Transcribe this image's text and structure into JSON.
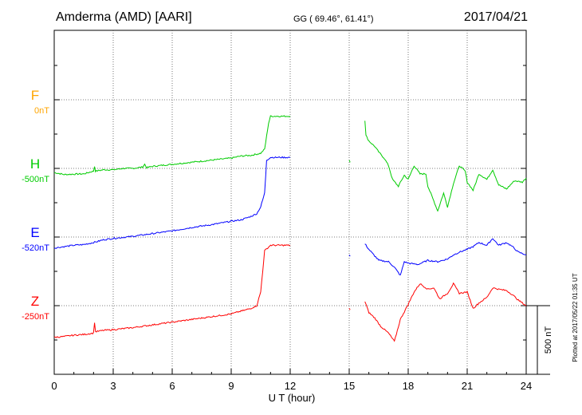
{
  "header": {
    "station": "Amderma (AMD)  [AARI]",
    "coords": "GG ( 69.46°,  61.41°)",
    "date": "2017/04/21"
  },
  "footer": {
    "xlabel": "U T (hour)",
    "scale_label": "500 nT",
    "plotted": "Plotted at 2017/05/22 01:35 UT"
  },
  "components": [
    {
      "name": "F",
      "offset": "0nT",
      "color": "#ffa500"
    },
    {
      "name": "H",
      "offset": "-500nT",
      "color": "#00cc00"
    },
    {
      "name": "E",
      "offset": "-520nT",
      "color": "#0000ff"
    },
    {
      "name": "Z",
      "offset": "-250nT",
      "color": "#ff0000"
    }
  ],
  "chart_data": {
    "type": "line",
    "title": "Amderma (AMD)  [AARI]",
    "xlabel": "U T (hour)",
    "ylabel": "",
    "xlim": [
      0,
      24
    ],
    "x_ticks": [
      "0",
      "3",
      "6",
      "9",
      "12",
      "15",
      "18",
      "21",
      "24"
    ],
    "y_unit_scale": "500 nT",
    "grid": true,
    "series": [
      {
        "name": "H",
        "color": "#00cc00",
        "segments": [
          [
            [
              0,
              -30
            ],
            [
              0.5,
              -45
            ],
            [
              1,
              -42
            ],
            [
              1.5,
              -40
            ],
            [
              2,
              -20
            ],
            [
              2.05,
              15
            ],
            [
              2.1,
              -20
            ],
            [
              2.5,
              -10
            ],
            [
              3,
              -10
            ],
            [
              3.5,
              0
            ],
            [
              4,
              0
            ],
            [
              4.5,
              10
            ],
            [
              4.6,
              30
            ],
            [
              4.7,
              5
            ],
            [
              5,
              15
            ],
            [
              6,
              30
            ],
            [
              7,
              45
            ],
            [
              8,
              60
            ],
            [
              9,
              75
            ],
            [
              9.5,
              90
            ],
            [
              10,
              95
            ],
            [
              10.5,
              110
            ],
            [
              10.7,
              140
            ],
            [
              10.9,
              330
            ],
            [
              11,
              380
            ],
            [
              12,
              380
            ]
          ],
          [
            [
              15,
              60
            ],
            [
              15.05,
              45
            ]
          ],
          [
            [
              15.8,
              350
            ],
            [
              15.85,
              240
            ],
            [
              16,
              200
            ],
            [
              16.3,
              160
            ],
            [
              16.5,
              120
            ],
            [
              16.8,
              70
            ],
            [
              17,
              20
            ],
            [
              17.2,
              -80
            ],
            [
              17.5,
              -130
            ],
            [
              17.8,
              -50
            ],
            [
              18,
              -80
            ],
            [
              18.3,
              20
            ],
            [
              18.6,
              -40
            ],
            [
              18.9,
              -40
            ],
            [
              19,
              -130
            ],
            [
              19.2,
              -200
            ],
            [
              19.5,
              -310
            ],
            [
              19.8,
              -180
            ],
            [
              20,
              -280
            ],
            [
              20.3,
              -110
            ],
            [
              20.6,
              20
            ],
            [
              20.9,
              -20
            ],
            [
              21,
              -100
            ],
            [
              21.3,
              -160
            ],
            [
              21.6,
              -40
            ],
            [
              22,
              -80
            ],
            [
              22.3,
              -10
            ],
            [
              22.6,
              -120
            ],
            [
              23,
              -150
            ],
            [
              23.4,
              -90
            ],
            [
              23.8,
              -100
            ],
            [
              24,
              -70
            ]
          ]
        ]
      },
      {
        "name": "E",
        "color": "#0000ff",
        "segments": [
          [
            [
              0,
              -80
            ],
            [
              0.5,
              -70
            ],
            [
              1,
              -60
            ],
            [
              1.5,
              -55
            ],
            [
              2,
              -40
            ],
            [
              2.5,
              -20
            ],
            [
              3,
              -10
            ],
            [
              4,
              5
            ],
            [
              5,
              25
            ],
            [
              6,
              45
            ],
            [
              7,
              70
            ],
            [
              8,
              90
            ],
            [
              9,
              115
            ],
            [
              9.5,
              125
            ],
            [
              10,
              150
            ],
            [
              10.3,
              170
            ],
            [
              10.5,
              220
            ],
            [
              10.7,
              320
            ],
            [
              10.8,
              560
            ],
            [
              11,
              580
            ],
            [
              12,
              580
            ]
          ],
          [
            [
              15,
              -130
            ],
            [
              15.05,
              -140
            ]
          ],
          [
            [
              15.8,
              -50
            ],
            [
              16,
              -90
            ],
            [
              16.5,
              -170
            ],
            [
              17,
              -180
            ],
            [
              17.3,
              -220
            ],
            [
              17.6,
              -280
            ],
            [
              17.8,
              -180
            ],
            [
              18,
              -190
            ],
            [
              18.5,
              -200
            ],
            [
              19,
              -170
            ],
            [
              19.5,
              -180
            ],
            [
              20,
              -160
            ],
            [
              20.3,
              -130
            ],
            [
              20.6,
              -110
            ],
            [
              21,
              -90
            ],
            [
              21.3,
              -70
            ],
            [
              21.6,
              -40
            ],
            [
              22,
              -60
            ],
            [
              22.3,
              -10
            ],
            [
              22.6,
              -60
            ],
            [
              23,
              -40
            ],
            [
              23.3,
              -70
            ],
            [
              23.6,
              -110
            ],
            [
              24,
              -130
            ]
          ]
        ]
      },
      {
        "name": "Z",
        "color": "#ff0000",
        "segments": [
          [
            [
              0,
              -230
            ],
            [
              0.5,
              -225
            ],
            [
              1,
              -215
            ],
            [
              1.5,
              -210
            ],
            [
              2,
              -200
            ],
            [
              2.05,
              -120
            ],
            [
              2.1,
              -190
            ],
            [
              2.5,
              -180
            ],
            [
              3,
              -175
            ],
            [
              4,
              -160
            ],
            [
              4.5,
              -150
            ],
            [
              5,
              -140
            ],
            [
              6,
              -120
            ],
            [
              7,
              -100
            ],
            [
              8,
              -80
            ],
            [
              9,
              -60
            ],
            [
              9.5,
              -40
            ],
            [
              10,
              -20
            ],
            [
              10.3,
              0
            ],
            [
              10.5,
              100
            ],
            [
              10.7,
              400
            ],
            [
              11,
              440
            ],
            [
              12,
              440
            ]
          ],
          [
            [
              15,
              -20
            ],
            [
              15.05,
              -30
            ]
          ],
          [
            [
              15.8,
              30
            ],
            [
              16,
              -50
            ],
            [
              16.3,
              -90
            ],
            [
              16.6,
              -150
            ],
            [
              17,
              -200
            ],
            [
              17.3,
              -260
            ],
            [
              17.6,
              -100
            ],
            [
              18,
              10
            ],
            [
              18.3,
              100
            ],
            [
              18.6,
              160
            ],
            [
              19,
              120
            ],
            [
              19.3,
              130
            ],
            [
              19.6,
              50
            ],
            [
              20,
              90
            ],
            [
              20.3,
              160
            ],
            [
              20.6,
              90
            ],
            [
              21,
              100
            ],
            [
              21.3,
              -20
            ],
            [
              21.6,
              20
            ],
            [
              22,
              60
            ],
            [
              22.3,
              130
            ],
            [
              22.6,
              120
            ],
            [
              23,
              110
            ],
            [
              23.3,
              80
            ],
            [
              23.6,
              40
            ],
            [
              24,
              0
            ]
          ]
        ]
      }
    ]
  }
}
